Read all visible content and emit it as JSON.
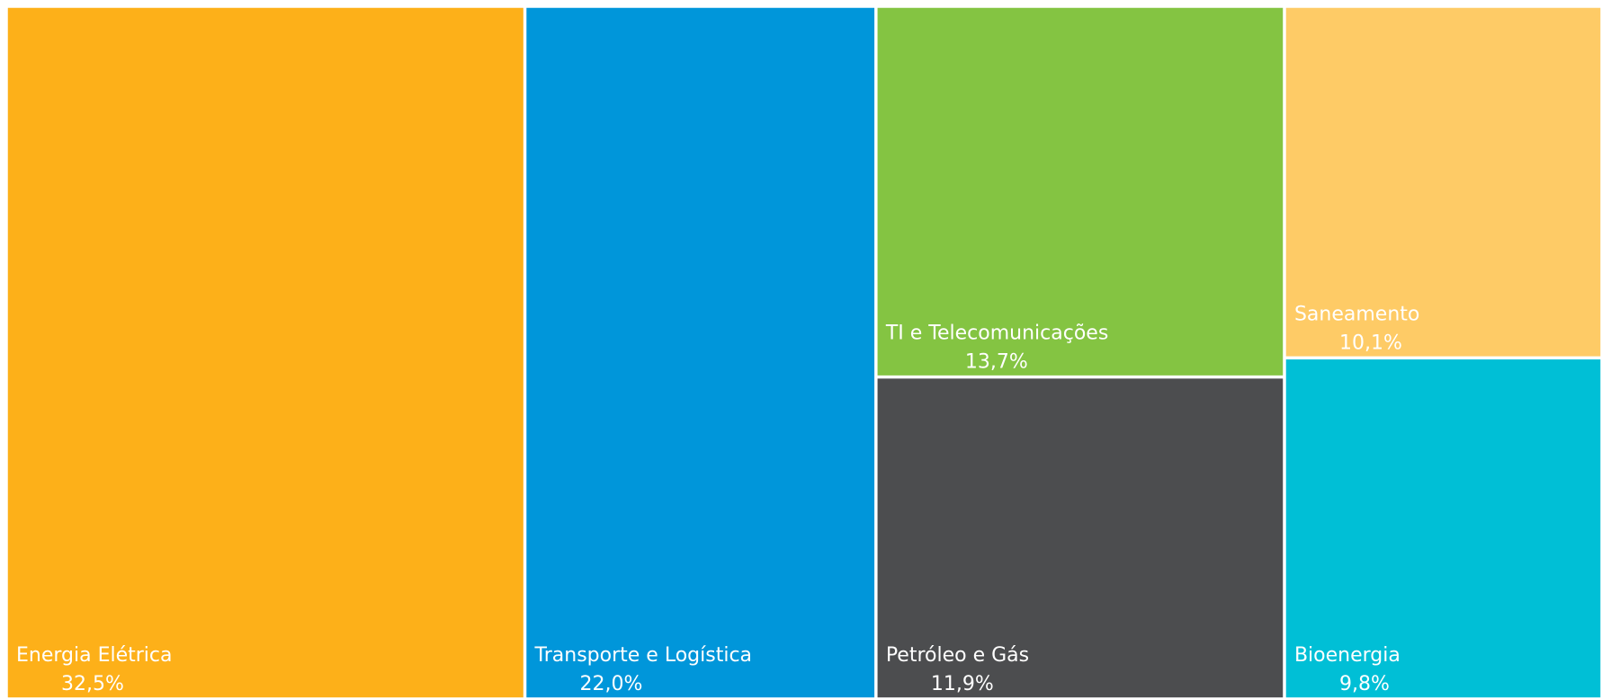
{
  "chart_data": {
    "type": "treemap",
    "categories": [
      "Energia Elétrica",
      "Transporte e Logística",
      "TI e Telecomunicações",
      "Petróleo e Gás",
      "Saneamento",
      "Bioenergia"
    ],
    "values": [
      32.5,
      22.0,
      13.7,
      11.9,
      10.1,
      9.8
    ],
    "value_labels": [
      "32,5%",
      "22,0%",
      "13,7%",
      "11,9%",
      "10,1%",
      "9,8%"
    ],
    "colors": [
      "#fdb019",
      "#0096da",
      "#84c442",
      "#4c4d4f",
      "#fecb66",
      "#00bfd6"
    ]
  }
}
